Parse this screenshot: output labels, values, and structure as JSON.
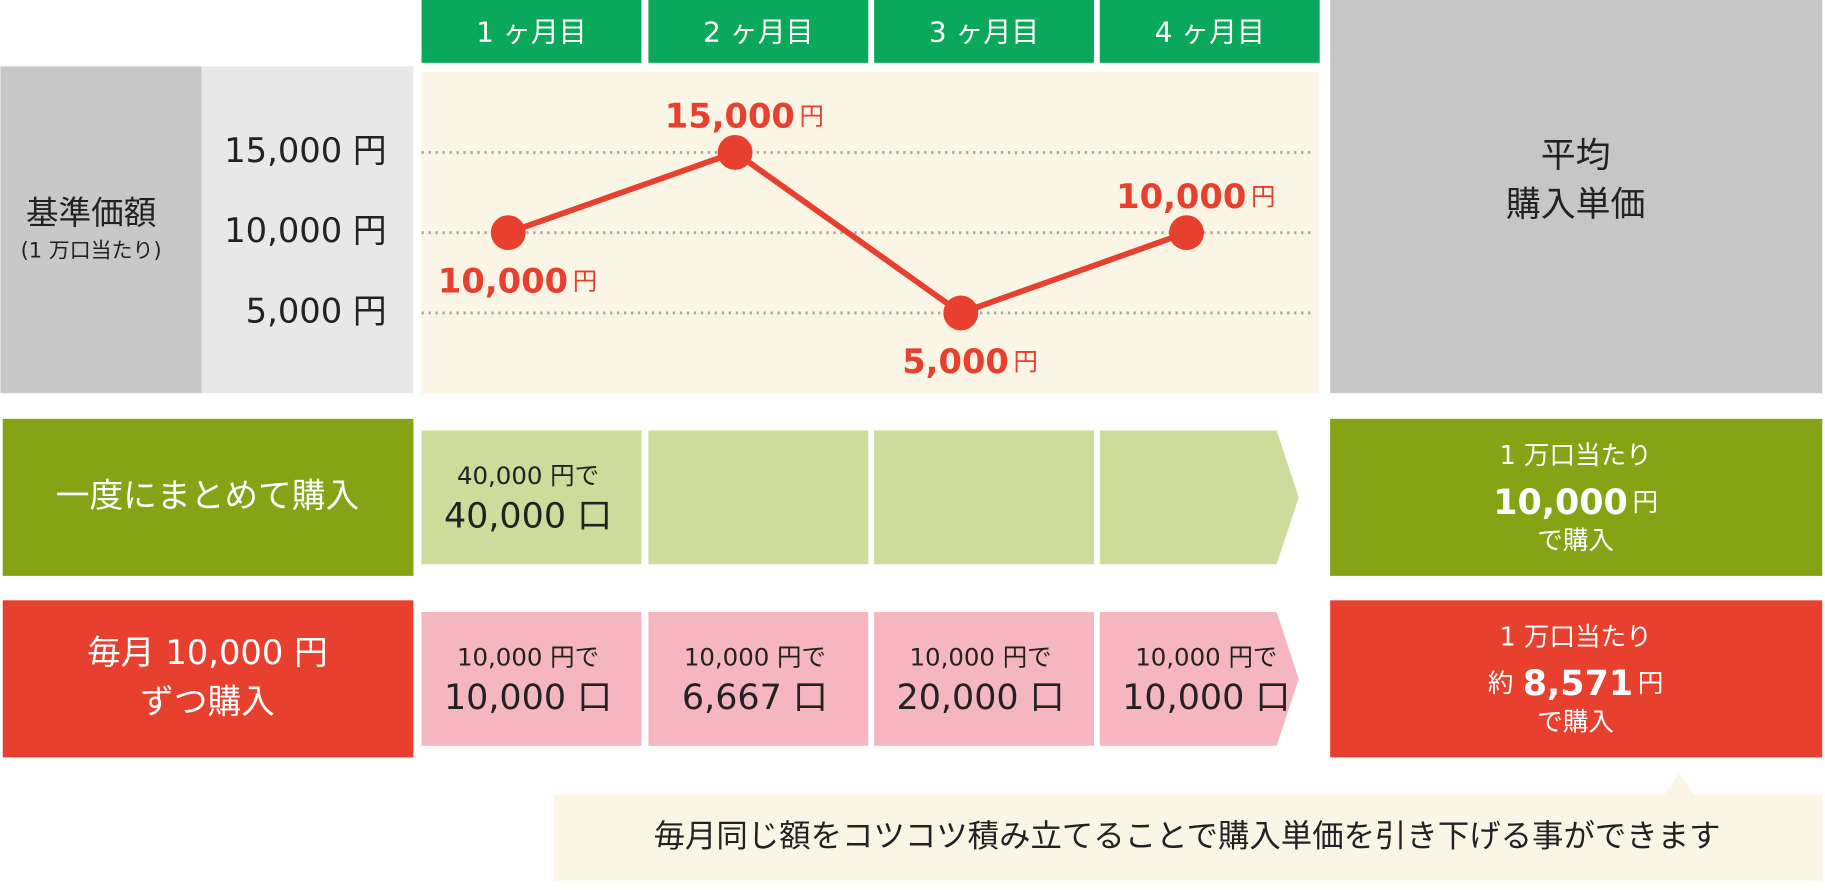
{
  "chart_data": {
    "type": "line",
    "y_label": "基準価額",
    "y_sublabel": "(1 万口当たり)",
    "categories": [
      "1 ヶ月目",
      "2 ヶ月目",
      "3 ヶ月目",
      "4 ヶ月目"
    ],
    "values": [
      10000,
      15000,
      5000,
      10000
    ],
    "value_labels": [
      "10,000",
      "15,000",
      "5,000",
      "10,000"
    ],
    "value_unit": "円",
    "color": "#e8402f",
    "ylim": [
      0,
      20000
    ],
    "yticks": [
      {
        "value": 5000,
        "label": "5,000 円"
      },
      {
        "value": 10000,
        "label": "10,000 円"
      },
      {
        "value": 15000,
        "label": "15,000 円"
      }
    ],
    "grid": true
  },
  "result_header": [
    "平均",
    "購入単価"
  ],
  "rows": [
    {
      "label": [
        "一度にまとめて購入"
      ],
      "cells": [
        {
          "amount": "40,000 円で",
          "units": "40,000 口"
        }
      ],
      "result": {
        "per": "1 万口当たり",
        "price": "10,000",
        "unit": "円",
        "suffix": "で購入"
      }
    },
    {
      "label": [
        "毎月 10,000 円",
        "ずつ購入"
      ],
      "cells": [
        {
          "amount": "10,000 円で",
          "units": "10,000 口"
        },
        {
          "amount": "10,000 円で",
          "units": "6,667 口"
        },
        {
          "amount": "10,000 円で",
          "units": "20,000 口"
        },
        {
          "amount": "10,000 円で",
          "units": "10,000 口"
        }
      ],
      "result": {
        "per": "1 万口当たり",
        "prefix": "約",
        "price": "8,571",
        "unit": "円",
        "suffix": "で購入"
      }
    }
  ],
  "note": "毎月同じ額をコツコツ積み立てることで購入単価を引き下げる事ができます"
}
